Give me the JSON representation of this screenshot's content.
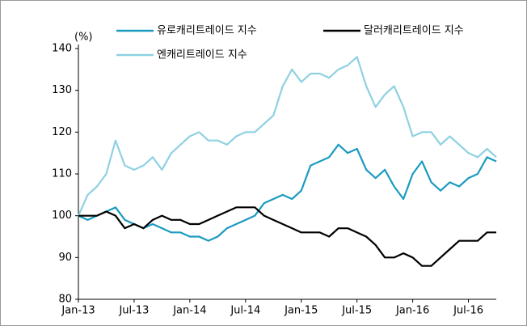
{
  "chart_data": {
    "type": "line",
    "y_label": "(%)",
    "x": [
      "Jan-13",
      null,
      null,
      null,
      null,
      null,
      "Jul-13",
      null,
      null,
      null,
      null,
      null,
      "Jan-14",
      null,
      null,
      null,
      null,
      null,
      "Jul-14",
      null,
      null,
      null,
      null,
      null,
      "Jan-15",
      null,
      null,
      null,
      null,
      null,
      "Jul-15",
      null,
      null,
      null,
      null,
      null,
      "Jan-16",
      null,
      null,
      null,
      null,
      null,
      "Jul-16",
      null,
      null,
      null
    ],
    "series": [
      {
        "name": "유로캐리트레이드 지수",
        "color": "#1a9bbf",
        "values": [
          100,
          99,
          100,
          101,
          102,
          99,
          98,
          97,
          98,
          97,
          96,
          96,
          95,
          95,
          94,
          95,
          97,
          98,
          99,
          100,
          103,
          104,
          105,
          104,
          106,
          112,
          113,
          114,
          117,
          115,
          116,
          111,
          109,
          111,
          107,
          104,
          110,
          113,
          108,
          106,
          108,
          107,
          109,
          110,
          114,
          113
        ]
      },
      {
        "name": "달러캐리트레이드 지수",
        "color": "#000000",
        "values": [
          100,
          100,
          100,
          101,
          100,
          97,
          98,
          97,
          99,
          100,
          99,
          99,
          98,
          98,
          99,
          100,
          101,
          102,
          102,
          102,
          100,
          99,
          98,
          97,
          96,
          96,
          96,
          95,
          97,
          97,
          96,
          95,
          93,
          90,
          90,
          91,
          90,
          88,
          88,
          90,
          92,
          94,
          94,
          94,
          96,
          96
        ]
      },
      {
        "name": "엔캐리트레이드 지수",
        "color": "#8fd1e2",
        "values": [
          100,
          105,
          107,
          110,
          118,
          112,
          111,
          112,
          114,
          111,
          115,
          117,
          119,
          120,
          118,
          118,
          117,
          119,
          120,
          120,
          122,
          124,
          131,
          135,
          132,
          134,
          134,
          133,
          135,
          136,
          138,
          131,
          126,
          129,
          131,
          126,
          119,
          120,
          120,
          117,
          119,
          117,
          115,
          114,
          116,
          114
        ]
      }
    ],
    "ylim": [
      80,
      140
    ],
    "yticks": [
      80,
      90,
      100,
      110,
      120,
      130,
      140
    ],
    "grid": false
  }
}
